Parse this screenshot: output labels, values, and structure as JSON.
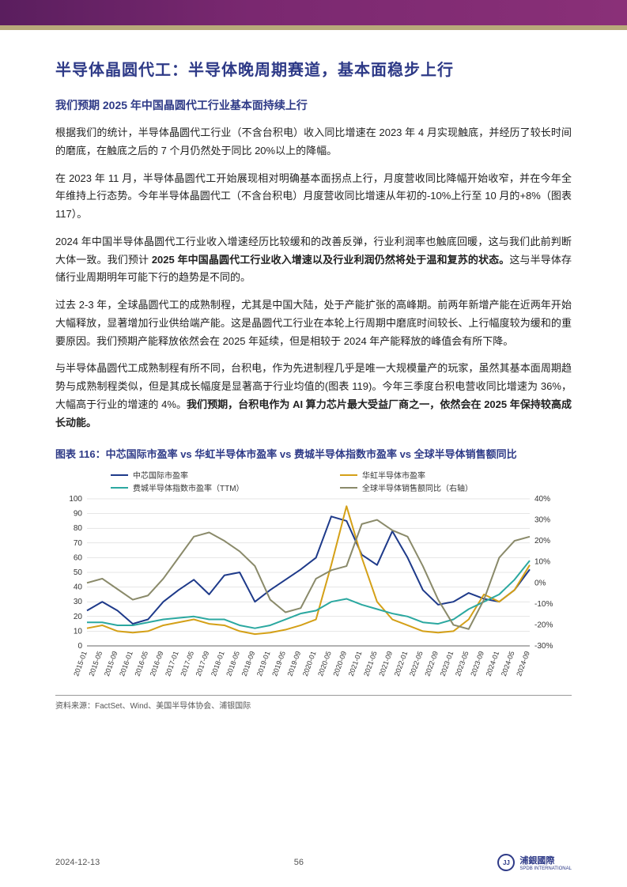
{
  "header": {
    "band_gradient": [
      "#5a1e5e",
      "#7a2870",
      "#8a3078"
    ],
    "accent_bar_color": "#b8a97a"
  },
  "title": "半导体晶圆代工：半导体晚周期赛道，基本面稳步上行",
  "subtitle": "我们预期 2025 年中国晶圆代工行业基本面持续上行",
  "paragraphs": [
    {
      "text": "根据我们的统计，半导体晶圆代工行业（不含台积电）收入同比增速在 2023 年 4 月实现触底，并经历了较长时间的磨底，在触底之后的 7 个月仍然处于同比 20%以上的降幅。"
    },
    {
      "text": "在 2023 年 11 月，半导体晶圆代工开始展现相对明确基本面拐点上行，月度营收同比降幅开始收窄，并在今年全年维持上行态势。今年半导体晶圆代工（不含台积电）月度营收同比增速从年初的-10%上行至 10 月的+8%（图表 117）。"
    },
    {
      "pre": "2024 年中国半导体晶圆代工行业收入增速经历比较缓和的改善反弹，行业利润率也触底回暖，这与我们此前判断大体一致。我们预计 ",
      "bold": "2025 年中国晶圆代工行业收入增速以及行业利润仍然将处于温和复苏的状态。",
      "post": "这与半导体存储行业周期明年可能下行的趋势是不同的。"
    },
    {
      "text": "过去 2-3 年，全球晶圆代工的成熟制程，尤其是中国大陆，处于产能扩张的高峰期。前两年新增产能在近两年开始大幅释放，显著增加行业供给端产能。这是晶圆代工行业在本轮上行周期中磨底时间较长、上行幅度较为缓和的重要原因。我们预期产能释放依然会在 2025 年延续，但是相较于 2024 年产能释放的峰值会有所下降。"
    },
    {
      "pre": "与半导体晶圆代工成熟制程有所不同，台积电，作为先进制程几乎是唯一大规模量产的玩家，虽然其基本面周期趋势与成熟制程类似，但是其成长幅度是显著高于行业均值的(图表 119)。今年三季度台积电营收同比增速为 36%，大幅高于行业的增速的 4%。",
      "bold": "我们预期，台积电作为 AI 算力芯片最大受益厂商之一，依然会在 2025 年保持较高成长动能。",
      "post": ""
    }
  ],
  "chart": {
    "type": "line",
    "title": "图表 116：中芯国际市盈率 vs 华虹半导体市盈率 vs 费城半导体指数市盈率 vs 全球半导体销售额同比",
    "legend": [
      {
        "label": "中芯国际市盈率",
        "color": "#1e3a8a"
      },
      {
        "label": "华虹半导体市盈率",
        "color": "#d4a017"
      },
      {
        "label": "费城半导体指数市盈率（TTM）",
        "color": "#2ba8a0"
      },
      {
        "label": "全球半导体销售额同比（右轴）",
        "color": "#8a8a6a"
      }
    ],
    "x_categories": [
      "2015-01",
      "2015-05",
      "2015-09",
      "2016-01",
      "2016-05",
      "2016-09",
      "2017-01",
      "2017-05",
      "2017-09",
      "2018-01",
      "2018-05",
      "2018-09",
      "2019-01",
      "2019-05",
      "2019-09",
      "2020-01",
      "2020-05",
      "2020-09",
      "2021-01",
      "2021-05",
      "2021-09",
      "2022-01",
      "2022-05",
      "2022-09",
      "2023-01",
      "2023-05",
      "2023-09",
      "2024-01",
      "2024-05",
      "2024-09"
    ],
    "y_left": {
      "min": 0,
      "max": 100,
      "step": 10,
      "label": ""
    },
    "y_right": {
      "min": -30,
      "max": 40,
      "step": 10,
      "label": ""
    },
    "series": {
      "smic": {
        "axis": "left",
        "color": "#1e3a8a",
        "width": 2,
        "data": [
          24,
          30,
          24,
          15,
          18,
          30,
          38,
          45,
          35,
          48,
          50,
          30,
          38,
          45,
          52,
          60,
          88,
          85,
          62,
          55,
          78,
          60,
          38,
          28,
          30,
          36,
          32,
          30,
          38,
          52
        ]
      },
      "huahong": {
        "axis": "left",
        "color": "#d4a017",
        "width": 2,
        "data": [
          12,
          14,
          10,
          9,
          10,
          14,
          16,
          18,
          15,
          14,
          10,
          8,
          9,
          11,
          14,
          18,
          55,
          95,
          60,
          30,
          18,
          14,
          10,
          9,
          10,
          18,
          35,
          30,
          38,
          55
        ]
      },
      "sox": {
        "axis": "left",
        "color": "#2ba8a0",
        "width": 2,
        "data": [
          16,
          16,
          14,
          14,
          16,
          18,
          19,
          20,
          18,
          18,
          14,
          12,
          14,
          18,
          22,
          24,
          30,
          32,
          28,
          25,
          22,
          20,
          16,
          15,
          18,
          25,
          30,
          35,
          45,
          58
        ]
      },
      "global_sales": {
        "axis": "right",
        "color": "#8a8a6a",
        "width": 2,
        "data": [
          0,
          2,
          -3,
          -8,
          -6,
          2,
          12,
          22,
          24,
          20,
          15,
          8,
          -8,
          -14,
          -12,
          2,
          6,
          8,
          28,
          30,
          25,
          22,
          8,
          -8,
          -20,
          -22,
          -8,
          12,
          20,
          22
        ]
      }
    },
    "grid_color": "#cccccc",
    "background": "#ffffff",
    "x_label_fontsize": 9,
    "y_label_fontsize": 10,
    "legend_fontsize": 10,
    "source": "资料来源：FactSet、Wind、美国半导体协会、浦银国际"
  },
  "footer": {
    "date": "2024-12-13",
    "page": "56",
    "company": "浦銀國際",
    "company_sub": "SPDB INTERNATIONAL"
  },
  "colors": {
    "title_color": "#2e3a87",
    "body_text": "#222222"
  }
}
